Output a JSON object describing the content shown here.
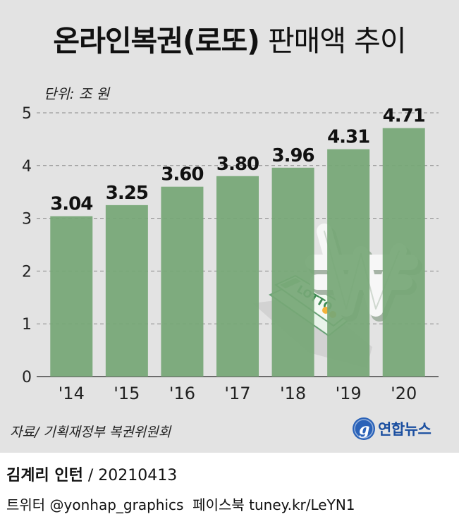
{
  "header": {
    "title_strong": "온라인복권(로또)",
    "title_light": " 판매액 추이",
    "unit": "단위: 조 원"
  },
  "chart_data": {
    "type": "bar",
    "categories": [
      "'14",
      "'15",
      "'16",
      "'17",
      "'18",
      "'19",
      "'20"
    ],
    "values": [
      3.04,
      3.25,
      3.6,
      3.8,
      3.96,
      4.31,
      4.71
    ],
    "value_labels": [
      "3.04",
      "3.25",
      "3.60",
      "3.80",
      "3.96",
      "4.31",
      "4.71"
    ],
    "yticks": [
      "0",
      "1",
      "2",
      "3",
      "4",
      "5"
    ],
    "ylim": [
      0,
      5
    ],
    "grid": true,
    "bar_color": "#76a776"
  },
  "illustration": {
    "ticket_text": "LOTTO",
    "icon": "won-sign-icon"
  },
  "footer": {
    "source": "자료/ 기획재정부 복권위원회",
    "brand": "연합뉴스",
    "author": "김계리 인턴",
    "date": " / 20210413",
    "social": "트위터 @yonhap_graphics  페이스북 tuney.kr/LeYN1"
  },
  "colors": {
    "background": "#e3e3e3",
    "bar": "#76a776",
    "brand": "#1b4fa0"
  }
}
